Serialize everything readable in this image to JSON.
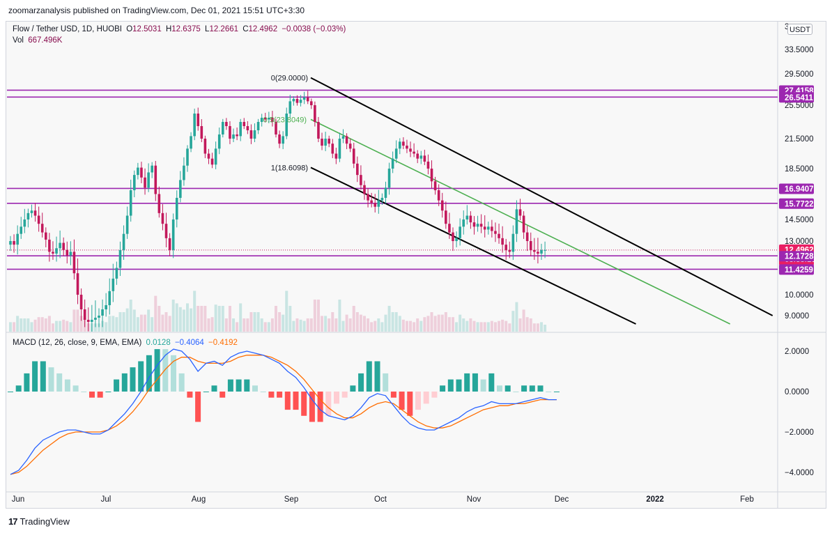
{
  "header": {
    "publisher_line": "zoomarzanalysis published on TradingView.com, Dec 01, 2021 15:51 UTC+3:30"
  },
  "legend": {
    "symbol": "Flow / Tether USD, 1D, HUOBI",
    "open_label": "O",
    "open_value": "12.5031",
    "high_label": "H",
    "high_value": "12.6375",
    "low_label": "L",
    "low_value": "12.2661",
    "close_label": "C",
    "close_value": "12.4962",
    "change": "−0.0038 (−0.03%)",
    "vol_label": "Vol",
    "vol_value": "667.496K"
  },
  "macd_legend": {
    "label": "MACD (12, 26, close, 9, EMA, EMA)",
    "hist_value": "0.0128",
    "macd_value": "−0.4064",
    "signal_value": "−0.4192"
  },
  "currency_badge": "USDT",
  "footer": {
    "brand": "TradingView",
    "logo_glyph": "17"
  },
  "colors": {
    "up": "#26a69a",
    "down": "#c2185b",
    "level_line": "#9c27b0",
    "fib_line": "#4caf50",
    "channel": "#000000",
    "macd": "#2962ff",
    "signal": "#ff6d00"
  },
  "chart_data": {
    "type": "candlestick",
    "price_axis_ticks": [
      "33.5000",
      "29.5000",
      "25.5000",
      "21.5000",
      "18.5000",
      "14.5000",
      "13.0000",
      "10.0000",
      "9.0000"
    ],
    "price_axis_top_partial": "3",
    "macd_axis_ticks": [
      "2.0000",
      "0.0000",
      "−2.0000",
      "−4.0000"
    ],
    "time_axis_ticks": [
      "Jun",
      "Jul",
      "Aug",
      "Sep",
      "Oct",
      "Nov",
      "Dec",
      "2022",
      "Feb"
    ],
    "price_labels": [
      {
        "value": "27.4158"
      },
      {
        "value": "26.5411"
      },
      {
        "value": "16.9407"
      },
      {
        "value": "15.7722"
      },
      {
        "value": "12.4962",
        "sub": "03:38:19"
      },
      {
        "value": "12.1728"
      },
      {
        "value": "11.4259"
      }
    ],
    "horizontal_levels": [
      27.4158,
      26.5411,
      16.9407,
      15.7722,
      12.1728,
      11.4259
    ],
    "current_price": 12.4962,
    "fib_labels": [
      {
        "text": "0(29.0000)",
        "price": 29.0
      },
      {
        "text": "1(18.6098)",
        "price": 18.6098
      }
    ],
    "fib_mid_label": "0.5(23.8049)",
    "channel": {
      "upper": [
        {
          "date": "2021-09-01",
          "price": 29.0
        },
        {
          "date": "2022-01-31",
          "price": 9.0
        }
      ],
      "lower": [
        {
          "date": "2021-09-01",
          "price": 18.6098
        },
        {
          "date": "2021-12-17",
          "price": 8.6
        }
      ],
      "mid": [
        {
          "date": "2021-09-01",
          "price": 23.8
        },
        {
          "date": "2022-01-17",
          "price": 8.6
        }
      ]
    },
    "closes": [
      13.0,
      12.8,
      13.5,
      14.0,
      14.5,
      15.0,
      15.2,
      14.8,
      14.2,
      13.6,
      13.1,
      12.4,
      12.3,
      12.6,
      12.9,
      12.5,
      12.2,
      12.4,
      11.2,
      10.0,
      9.3,
      8.8,
      8.7,
      8.8,
      8.9,
      9.0,
      9.3,
      9.5,
      10.2,
      10.9,
      11.5,
      12.5,
      13.5,
      14.8,
      16.8,
      18.0,
      18.6,
      17.8,
      17.0,
      18.2,
      18.8,
      16.5,
      15.0,
      14.2,
      13.2,
      12.5,
      14.5,
      16.2,
      17.6,
      18.8,
      20.5,
      21.8,
      24.5,
      23.0,
      21.5,
      20.0,
      19.5,
      18.9,
      20.5,
      22.0,
      23.5,
      23.0,
      21.5,
      22.0,
      21.8,
      23.5,
      23.0,
      22.5,
      21.5,
      22.5,
      23.5,
      24.0,
      23.8,
      24.0,
      23.5,
      22.0,
      21.0,
      21.8,
      24.5,
      26.0,
      26.3,
      25.8,
      26.2,
      26.5,
      26.0,
      25.5,
      23.5,
      21.5,
      20.8,
      21.5,
      21.0,
      20.0,
      19.5,
      21.5,
      21.8,
      21.0,
      20.5,
      19.0,
      18.0,
      17.2,
      16.5,
      16.0,
      15.8,
      15.5,
      16.0,
      16.2,
      17.0,
      18.5,
      19.5,
      20.5,
      21.2,
      20.8,
      20.5,
      20.2,
      20.0,
      19.5,
      19.8,
      19.2,
      18.5,
      17.5,
      16.8,
      16.0,
      15.2,
      14.2,
      13.6,
      13.0,
      13.2,
      14.0,
      14.5,
      14.8,
      14.3,
      14.0,
      14.2,
      14.0,
      13.8,
      14.0,
      13.7,
      13.5,
      13.2,
      12.8,
      12.5,
      12.4,
      13.5,
      15.3,
      14.8,
      13.6,
      13.0,
      12.5,
      12.4,
      12.3,
      12.5,
      12.5
    ],
    "macd_line": [
      -4.1,
      -3.9,
      -3.4,
      -2.8,
      -2.4,
      -2.2,
      -2.0,
      -1.9,
      -1.9,
      -2.0,
      -2.1,
      -2.1,
      -1.9,
      -1.5,
      -1.1,
      -0.6,
      0.0,
      0.7,
      1.3,
      1.8,
      2.1,
      2.0,
      1.6,
      1.0,
      1.4,
      1.5,
      1.3,
      1.7,
      1.9,
      2.0,
      1.9,
      1.8,
      1.6,
      1.4,
      1.0,
      0.7,
      0.2,
      -0.4,
      -0.9,
      -1.2,
      -1.3,
      -1.4,
      -1.2,
      -0.8,
      -0.3,
      -0.1,
      -0.2,
      -0.7,
      -1.2,
      -1.6,
      -1.8,
      -1.9,
      -1.9,
      -1.7,
      -1.5,
      -1.3,
      -1.0,
      -0.8,
      -0.7,
      -0.5,
      -0.6,
      -0.6,
      -0.6,
      -0.5,
      -0.4,
      -0.3,
      -0.4,
      -0.4
    ],
    "signal_line": [
      -4.1,
      -4.0,
      -3.7,
      -3.3,
      -2.9,
      -2.6,
      -2.3,
      -2.1,
      -2.0,
      -2.0,
      -2.0,
      -2.0,
      -1.9,
      -1.7,
      -1.4,
      -1.0,
      -0.5,
      0.1,
      0.6,
      1.1,
      1.5,
      1.7,
      1.7,
      1.5,
      1.4,
      1.4,
      1.4,
      1.5,
      1.7,
      1.8,
      1.8,
      1.8,
      1.7,
      1.5,
      1.3,
      1.0,
      0.6,
      0.1,
      -0.4,
      -0.8,
      -1.1,
      -1.3,
      -1.3,
      -1.1,
      -0.8,
      -0.6,
      -0.5,
      -0.6,
      -0.9,
      -1.2,
      -1.5,
      -1.7,
      -1.8,
      -1.8,
      -1.7,
      -1.5,
      -1.3,
      -1.1,
      -0.9,
      -0.8,
      -0.7,
      -0.7,
      -0.6,
      -0.6,
      -0.5,
      -0.4,
      -0.4,
      -0.4
    ]
  }
}
